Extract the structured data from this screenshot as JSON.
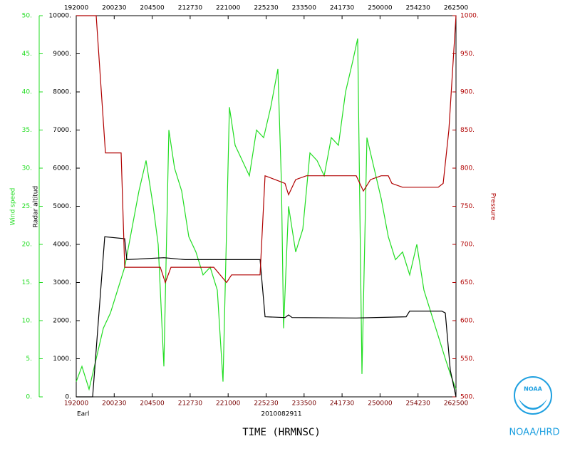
{
  "chart_data": {
    "type": "line",
    "subtitle": "Earl",
    "annotation": "2010082911",
    "xlabel": "TIME (HRMNSC)",
    "credit": "NOAA/HRD",
    "logo": "NOAA",
    "xlim": [
      69600,
      95100
    ],
    "xticks": [
      {
        "value": 69600,
        "label": "192000"
      },
      {
        "value": 72150,
        "label": "200230"
      },
      {
        "value": 74700,
        "label": "204500"
      },
      {
        "value": 77250,
        "label": "212730"
      },
      {
        "value": 79800,
        "label": "221000"
      },
      {
        "value": 82350,
        "label": "225230"
      },
      {
        "value": 84900,
        "label": "233500"
      },
      {
        "value": 87450,
        "label": "241730"
      },
      {
        "value": 90000,
        "label": "250000"
      },
      {
        "value": 92550,
        "label": "254230"
      },
      {
        "value": 95100,
        "label": "262500"
      }
    ],
    "ylabel": "Wind speed",
    "ylim": [
      0,
      50
    ],
    "yticks": [
      {
        "value": 0,
        "label": "0."
      },
      {
        "value": 5,
        "label": "5."
      },
      {
        "value": 10,
        "label": "10."
      },
      {
        "value": 15,
        "label": "15."
      },
      {
        "value": 20,
        "label": "20."
      },
      {
        "value": 25,
        "label": "25."
      },
      {
        "value": 30,
        "label": "30."
      },
      {
        "value": 35,
        "label": "35."
      },
      {
        "value": 40,
        "label": "40."
      },
      {
        "value": 45,
        "label": "45."
      },
      {
        "value": 50,
        "label": "50."
      }
    ],
    "y3label": "Radar altitud",
    "y3lim": [
      0,
      10000
    ],
    "y3ticks": [
      {
        "value": 0,
        "label": "0."
      },
      {
        "value": 1000,
        "label": "1000."
      },
      {
        "value": 2000,
        "label": "2000."
      },
      {
        "value": 3000,
        "label": "3000."
      },
      {
        "value": 4000,
        "label": "4000."
      },
      {
        "value": 5000,
        "label": "5000."
      },
      {
        "value": 6000,
        "label": "6000."
      },
      {
        "value": 7000,
        "label": "7000."
      },
      {
        "value": 8000,
        "label": "8000."
      },
      {
        "value": 9000,
        "label": "9000."
      },
      {
        "value": 10000,
        "label": "10000."
      }
    ],
    "y2label": "Pressure",
    "y2lim": [
      500,
      1000
    ],
    "y2ticks": [
      {
        "value": 500,
        "label": "500."
      },
      {
        "value": 550,
        "label": "550."
      },
      {
        "value": 600,
        "label": "600."
      },
      {
        "value": 650,
        "label": "650."
      },
      {
        "value": 700,
        "label": "700."
      },
      {
        "value": 750,
        "label": "750."
      },
      {
        "value": 800,
        "label": "800."
      },
      {
        "value": 850,
        "label": "850."
      },
      {
        "value": 900,
        "label": "900."
      },
      {
        "value": 950,
        "label": "950."
      },
      {
        "value": 1000,
        "label": "1000."
      }
    ],
    "series": [
      {
        "name": "Wind speed",
        "color": "#22dd22",
        "axis": "y",
        "x": [
          69600,
          69983,
          70461,
          70940,
          71418,
          71896,
          72375,
          72853,
          73332,
          73810,
          74288,
          74767,
          75102,
          75484,
          75819,
          76202,
          76680,
          77159,
          77637,
          78116,
          78594,
          79072,
          79455,
          79886,
          80268,
          80747,
          81225,
          81704,
          82182,
          82660,
          83139,
          83378,
          83522,
          83856,
          84335,
          84813,
          85292,
          85770,
          86248,
          86727,
          87205,
          87684,
          88162,
          88497,
          88784,
          89119,
          89597,
          90076,
          90554,
          91032,
          91511,
          91989,
          92468,
          92946,
          93424,
          93903,
          94381,
          94716,
          95100
        ],
        "values": [
          2,
          4,
          1,
          5,
          9,
          11,
          14,
          17,
          22,
          27,
          31,
          25,
          20,
          4,
          35,
          30,
          27,
          21,
          19,
          16,
          17,
          14,
          2,
          38,
          33,
          31,
          29,
          35,
          34,
          38,
          43,
          28,
          9,
          25,
          19,
          22,
          32,
          31,
          29,
          34,
          33,
          40,
          44,
          47,
          3,
          34,
          30,
          26,
          21,
          18,
          19,
          16,
          20,
          14,
          11,
          8,
          5,
          3,
          1
        ]
      },
      {
        "name": "Radar altitud",
        "color": "#000000",
        "axis": "y3",
        "x": [
          69600,
          70700,
          71514,
          72853,
          72997,
          75484,
          76920,
          78833,
          81943,
          82278,
          83617,
          83856,
          84096,
          88401,
          91750,
          91989,
          94142,
          94381,
          94716,
          95100
        ],
        "values": [
          0,
          0,
          4200,
          4150,
          3600,
          3650,
          3600,
          3600,
          3600,
          2100,
          2080,
          2150,
          2080,
          2070,
          2100,
          2250,
          2250,
          2200,
          700,
          0
        ]
      },
      {
        "name": "Pressure",
        "color": "#b00000",
        "axis": "y2",
        "x": [
          69600,
          70940,
          71561,
          72614,
          72853,
          75245,
          75580,
          75963,
          78833,
          79694,
          80029,
          81943,
          82278,
          83617,
          83856,
          84335,
          85052,
          88401,
          88880,
          89358,
          90076,
          90554,
          90793,
          91511,
          93903,
          94238,
          94621,
          95100
        ],
        "values": [
          1000,
          1000,
          820,
          820,
          670,
          670,
          650,
          670,
          670,
          650,
          660,
          660,
          790,
          780,
          765,
          785,
          790,
          790,
          770,
          785,
          790,
          790,
          780,
          775,
          775,
          780,
          850,
          1000
        ]
      }
    ]
  }
}
